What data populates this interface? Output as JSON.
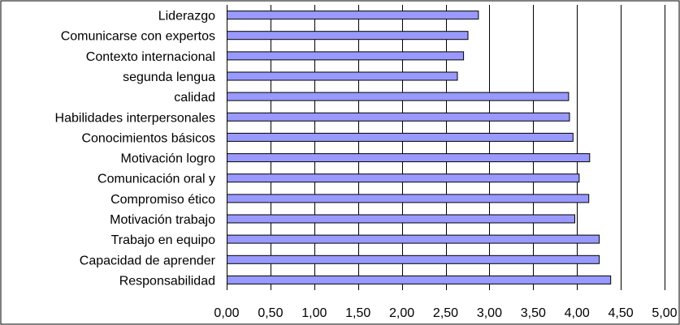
{
  "chart_data": {
    "type": "bar",
    "orientation": "horizontal",
    "categories": [
      "Liderazgo",
      "Comunicarse con expertos",
      "Contexto internacional",
      "segunda lengua",
      "calidad",
      "Habilidades interpersonales",
      "Conocimientos básicos",
      "Motivación logro",
      "Comunicación oral y",
      "Compromiso ético",
      "Motivación trabajo",
      "Trabajo en equipo",
      "Capacidad de aprender",
      "Responsabilidad"
    ],
    "values": [
      2.87,
      2.75,
      2.7,
      2.63,
      3.9,
      3.91,
      3.95,
      4.14,
      4.02,
      4.13,
      3.97,
      4.25,
      4.25,
      4.38
    ],
    "xlim": [
      0,
      5
    ],
    "xticks": [
      "0,00",
      "0,50",
      "1,00",
      "1,50",
      "2,00",
      "2,50",
      "3,00",
      "3,50",
      "4,00",
      "4,50",
      "5,00"
    ],
    "grid": "vertical",
    "legend": "none",
    "colors": {
      "bar_fill": "#9999ff",
      "bar_stroke": "#000000",
      "gridline": "#000000",
      "background": "#ffffff"
    },
    "title": "",
    "xlabel": "",
    "ylabel": ""
  }
}
